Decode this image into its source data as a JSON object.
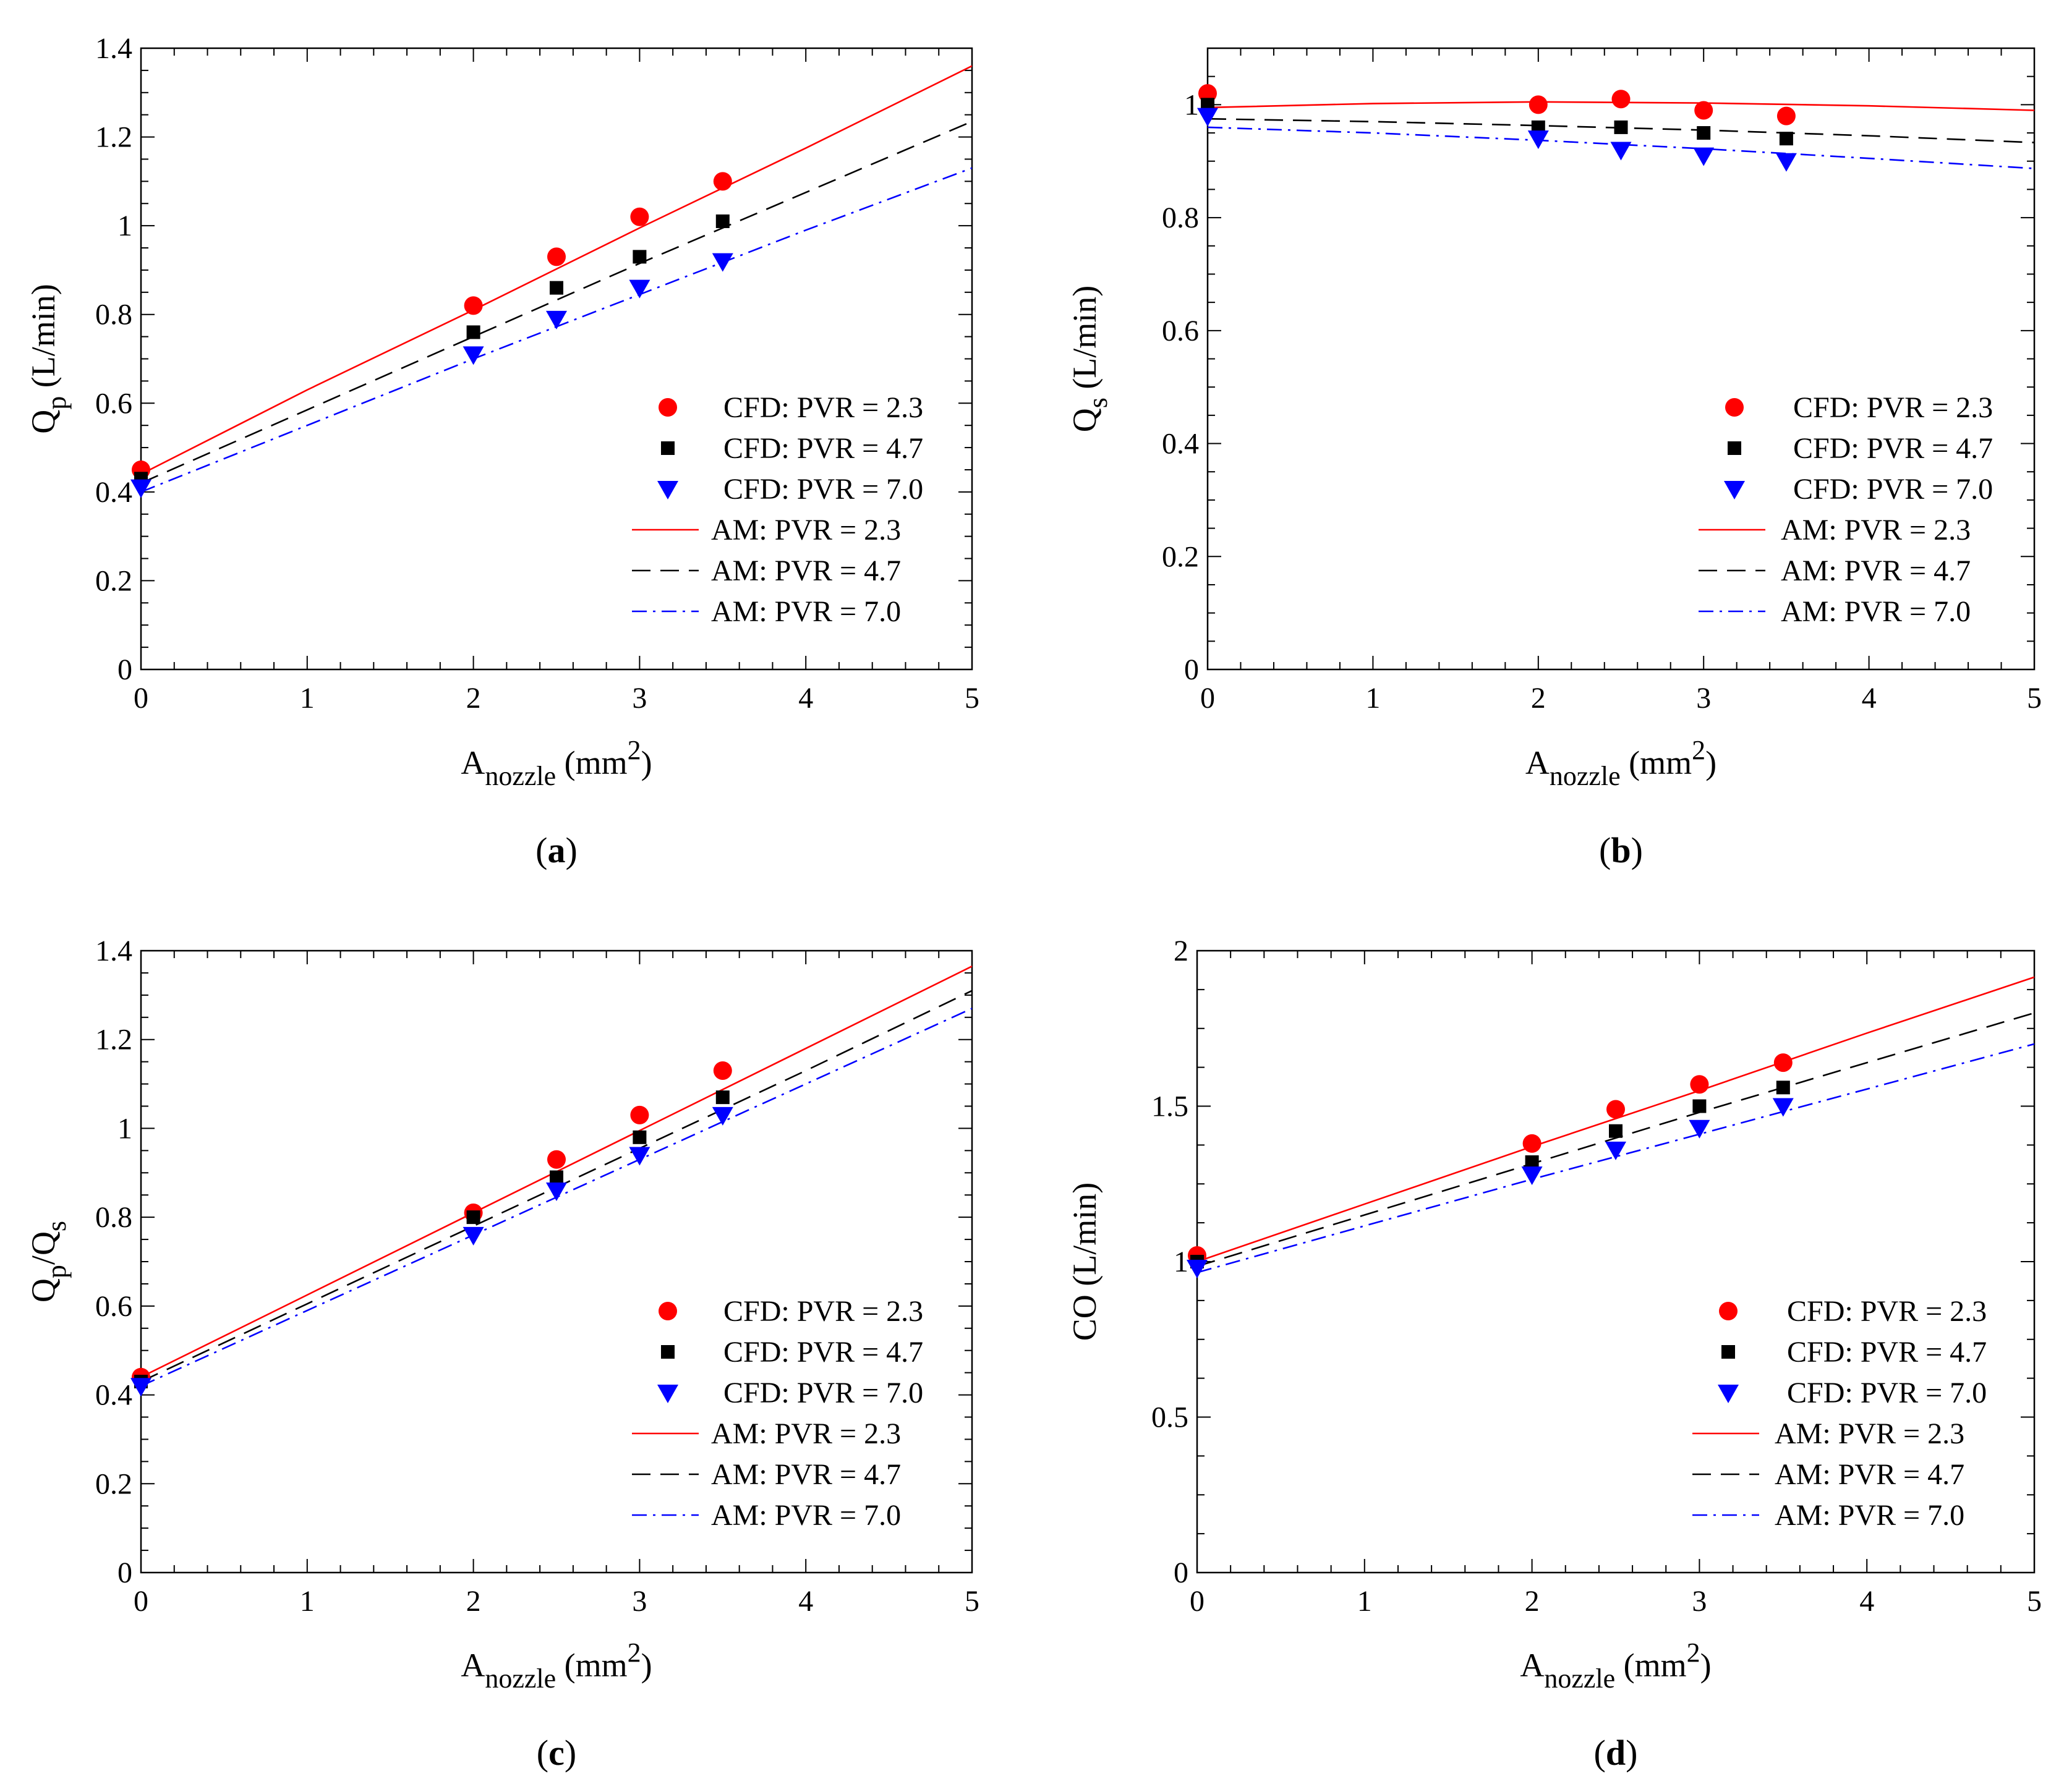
{
  "colors": {
    "pvr23": "#ff0000",
    "pvr47": "#000000",
    "pvr70": "#0000ff"
  },
  "chart_data": [
    {
      "panel": "a",
      "panel_label": "a",
      "type": "scatter+line",
      "ylabel": {
        "base": "Q",
        "sub": "p",
        "unit": " (L/min)"
      },
      "xlabel": {
        "base": "A",
        "sub": "nozzle",
        "unit": " (mm",
        "sup": "2",
        "close": ")"
      },
      "xlim": [
        0,
        5
      ],
      "ylim": [
        0,
        1.4
      ],
      "xticks": [
        "0",
        "1",
        "2",
        "3",
        "4",
        "5"
      ],
      "yticks": [
        "0",
        "0.2",
        "0.4",
        "0.6",
        "0.8",
        "1",
        "1.2",
        "1.4"
      ],
      "ytick_values": [
        0,
        0.2,
        0.4,
        0.6,
        0.8,
        1.0,
        1.2,
        1.4
      ],
      "cfd_x": [
        0,
        2,
        2.5,
        3,
        3.5
      ],
      "series": [
        {
          "name": "CFD: PVR = 2.3",
          "kind": "cfd",
          "marker": "circle",
          "color": "#ff0000",
          "values": [
            0.45,
            0.82,
            0.93,
            1.02,
            1.1
          ]
        },
        {
          "name": "CFD: PVR = 4.7",
          "kind": "cfd",
          "marker": "square",
          "color": "#000000",
          "values": [
            0.43,
            0.76,
            0.86,
            0.93,
            1.01
          ]
        },
        {
          "name": "CFD: PVR = 7.0",
          "kind": "cfd",
          "marker": "triangle",
          "color": "#0000ff",
          "values": [
            0.41,
            0.71,
            0.79,
            0.86,
            0.92
          ]
        },
        {
          "name": "AM: PVR = 2.3",
          "kind": "am",
          "dash": "solid",
          "color": "#ff0000",
          "x": [
            0,
            1,
            2,
            3,
            4,
            5
          ],
          "values": [
            0.44,
            0.63,
            0.81,
            0.995,
            1.175,
            1.36
          ]
        },
        {
          "name": "AM: PVR = 4.7",
          "kind": "am",
          "dash": "dash",
          "color": "#000000",
          "x": [
            0,
            1,
            2,
            3,
            4,
            5
          ],
          "values": [
            0.42,
            0.585,
            0.75,
            0.915,
            1.075,
            1.235
          ]
        },
        {
          "name": "AM: PVR = 7.0",
          "kind": "am",
          "dash": "dashdot",
          "color": "#0000ff",
          "x": [
            0,
            1,
            2,
            3,
            4,
            5
          ],
          "values": [
            0.4,
            0.55,
            0.7,
            0.845,
            0.99,
            1.13
          ]
        }
      ]
    },
    {
      "panel": "b",
      "panel_label": "b",
      "type": "scatter+line",
      "ylabel": {
        "base": "Q",
        "sub": "s",
        "unit": " (L/min)"
      },
      "xlabel": {
        "base": "A",
        "sub": "nozzle",
        "unit": " (mm",
        "sup": "2",
        "close": ")"
      },
      "xlim": [
        0,
        5
      ],
      "ylim": [
        0,
        1.1
      ],
      "xticks": [
        "0",
        "1",
        "2",
        "3",
        "4",
        "5"
      ],
      "yticks": [
        "0",
        "0.2",
        "0.4",
        "0.6",
        "0.8",
        "1"
      ],
      "ytick_values": [
        0,
        0.2,
        0.4,
        0.6,
        0.8,
        1.0
      ],
      "cfd_x": [
        0,
        2,
        2.5,
        3,
        3.5
      ],
      "series": [
        {
          "name": "CFD: PVR = 2.3",
          "kind": "cfd",
          "marker": "circle",
          "color": "#ff0000",
          "values": [
            1.02,
            1.0,
            1.01,
            0.99,
            0.98
          ]
        },
        {
          "name": "CFD: PVR = 4.7",
          "kind": "cfd",
          "marker": "square",
          "color": "#000000",
          "values": [
            1.0,
            0.96,
            0.96,
            0.95,
            0.94
          ]
        },
        {
          "name": "CFD: PVR = 7.0",
          "kind": "cfd",
          "marker": "triangle",
          "color": "#0000ff",
          "values": [
            0.98,
            0.94,
            0.92,
            0.91,
            0.9
          ]
        },
        {
          "name": "AM: PVR = 2.3",
          "kind": "am",
          "dash": "solid",
          "color": "#ff0000",
          "x": [
            0,
            1,
            2,
            3,
            4,
            5
          ],
          "values": [
            0.995,
            1.002,
            1.005,
            1.003,
            0.998,
            0.99
          ]
        },
        {
          "name": "AM: PVR = 4.7",
          "kind": "am",
          "dash": "dash",
          "color": "#000000",
          "x": [
            0,
            1,
            2,
            3,
            4,
            5
          ],
          "values": [
            0.975,
            0.97,
            0.963,
            0.955,
            0.945,
            0.933
          ]
        },
        {
          "name": "AM: PVR = 7.0",
          "kind": "am",
          "dash": "dashdot",
          "color": "#0000ff",
          "x": [
            0,
            1,
            2,
            3,
            4,
            5
          ],
          "values": [
            0.96,
            0.95,
            0.937,
            0.922,
            0.905,
            0.887
          ]
        }
      ]
    },
    {
      "panel": "c",
      "panel_label": "c",
      "type": "scatter+line",
      "ylabel": {
        "base": "Q",
        "sub": "p",
        "mid": "/Q",
        "sub2": "s",
        "unit": ""
      },
      "xlabel": {
        "base": "A",
        "sub": "nozzle",
        "unit": " (mm",
        "sup": "2",
        "close": ")"
      },
      "xlim": [
        0,
        5
      ],
      "ylim": [
        0,
        1.4
      ],
      "xticks": [
        "0",
        "1",
        "2",
        "3",
        "4",
        "5"
      ],
      "yticks": [
        "0",
        "0.2",
        "0.4",
        "0.6",
        "0.8",
        "1",
        "1.2",
        "1.4"
      ],
      "ytick_values": [
        0,
        0.2,
        0.4,
        0.6,
        0.8,
        1.0,
        1.2,
        1.4
      ],
      "cfd_x": [
        0,
        2,
        2.5,
        3,
        3.5
      ],
      "series": [
        {
          "name": "CFD: PVR = 2.3",
          "kind": "cfd",
          "marker": "circle",
          "color": "#ff0000",
          "values": [
            0.44,
            0.81,
            0.93,
            1.03,
            1.13
          ]
        },
        {
          "name": "CFD: PVR = 4.7",
          "kind": "cfd",
          "marker": "square",
          "color": "#000000",
          "values": [
            0.43,
            0.8,
            0.89,
            0.98,
            1.07
          ]
        },
        {
          "name": "CFD: PVR = 7.0",
          "kind": "cfd",
          "marker": "triangle",
          "color": "#0000ff",
          "values": [
            0.42,
            0.76,
            0.86,
            0.94,
            1.03
          ]
        },
        {
          "name": "AM: PVR = 2.3",
          "kind": "am",
          "dash": "solid",
          "color": "#ff0000",
          "x": [
            0,
            1,
            2,
            3,
            4,
            5
          ],
          "values": [
            0.44,
            0.625,
            0.81,
            0.995,
            1.18,
            1.365
          ]
        },
        {
          "name": "AM: PVR = 4.7",
          "kind": "am",
          "dash": "dash",
          "color": "#000000",
          "x": [
            0,
            1,
            2,
            3,
            4,
            5
          ],
          "values": [
            0.43,
            0.605,
            0.78,
            0.955,
            1.13,
            1.31
          ]
        },
        {
          "name": "AM: PVR = 7.0",
          "kind": "am",
          "dash": "dashdot",
          "color": "#0000ff",
          "x": [
            0,
            1,
            2,
            3,
            4,
            5
          ],
          "values": [
            0.42,
            0.59,
            0.76,
            0.93,
            1.1,
            1.27
          ]
        }
      ]
    },
    {
      "panel": "d",
      "panel_label": "d",
      "type": "scatter+line",
      "ylabel": {
        "base": "CO (L/min)",
        "sub": "",
        "unit": ""
      },
      "xlabel": {
        "base": "A",
        "sub": "nozzle",
        "unit": " (mm",
        "sup": "2",
        "close": ")"
      },
      "xlim": [
        0,
        5
      ],
      "ylim": [
        0,
        2
      ],
      "xticks": [
        "0",
        "1",
        "2",
        "3",
        "4",
        "5"
      ],
      "yticks": [
        "0",
        "0.5",
        "1",
        "1.5",
        "2"
      ],
      "ytick_values": [
        0,
        0.5,
        1.0,
        1.5,
        2.0
      ],
      "cfd_x": [
        0,
        2,
        2.5,
        3,
        3.5
      ],
      "series": [
        {
          "name": "CFD: PVR = 2.3",
          "kind": "cfd",
          "marker": "circle",
          "color": "#ff0000",
          "values": [
            1.02,
            1.38,
            1.49,
            1.57,
            1.64
          ]
        },
        {
          "name": "CFD: PVR = 4.7",
          "kind": "cfd",
          "marker": "square",
          "color": "#000000",
          "values": [
            1.0,
            1.32,
            1.42,
            1.5,
            1.56
          ]
        },
        {
          "name": "CFD: PVR = 7.0",
          "kind": "cfd",
          "marker": "triangle",
          "color": "#0000ff",
          "values": [
            0.98,
            1.28,
            1.36,
            1.43,
            1.5
          ]
        },
        {
          "name": "AM: PVR = 2.3",
          "kind": "am",
          "dash": "solid",
          "color": "#ff0000",
          "x": [
            0,
            1,
            2,
            3,
            4,
            5
          ],
          "values": [
            1.0,
            1.185,
            1.37,
            1.55,
            1.735,
            1.915
          ]
        },
        {
          "name": "AM: PVR = 4.7",
          "kind": "am",
          "dash": "dash",
          "color": "#000000",
          "x": [
            0,
            1,
            2,
            3,
            4,
            5
          ],
          "values": [
            0.985,
            1.15,
            1.315,
            1.48,
            1.64,
            1.8
          ]
        },
        {
          "name": "AM: PVR = 7.0",
          "kind": "am",
          "dash": "dashdot",
          "color": "#0000ff",
          "x": [
            0,
            1,
            2,
            3,
            4,
            5
          ],
          "values": [
            0.965,
            1.115,
            1.265,
            1.41,
            1.555,
            1.7
          ]
        }
      ]
    }
  ]
}
